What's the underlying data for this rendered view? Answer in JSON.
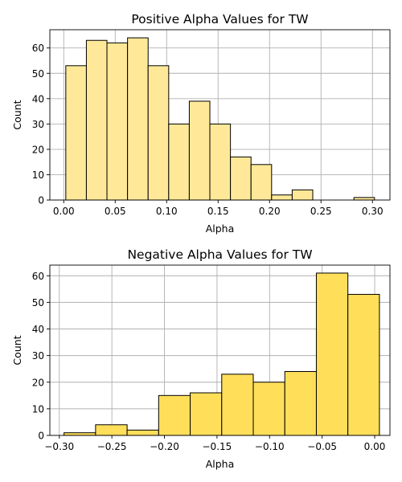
{
  "chart_data": [
    {
      "type": "bar",
      "title": "Positive Alpha Values for TW",
      "xlabel": "Alpha",
      "ylabel": "Count",
      "color": "#ffe999",
      "xlim": [
        -0.0135,
        0.317
      ],
      "ylim": [
        0,
        67.2
      ],
      "grid": true,
      "xticks": [
        0.0,
        0.05,
        0.1,
        0.15,
        0.2,
        0.25,
        0.3
      ],
      "xtick_labels": [
        "0.00",
        "0.05",
        "0.10",
        "0.15",
        "0.20",
        "0.25",
        "0.30"
      ],
      "yticks": [
        0,
        10,
        20,
        30,
        40,
        50,
        60
      ],
      "ytick_labels": [
        "0",
        "10",
        "20",
        "30",
        "40",
        "50",
        "60"
      ],
      "bins": [
        {
          "x0": 0.002,
          "x1": 0.022,
          "value": 53
        },
        {
          "x0": 0.022,
          "x1": 0.042,
          "value": 63
        },
        {
          "x0": 0.042,
          "x1": 0.062,
          "value": 62
        },
        {
          "x0": 0.062,
          "x1": 0.082,
          "value": 64
        },
        {
          "x0": 0.082,
          "x1": 0.102,
          "value": 53
        },
        {
          "x0": 0.102,
          "x1": 0.122,
          "value": 30
        },
        {
          "x0": 0.122,
          "x1": 0.142,
          "value": 39
        },
        {
          "x0": 0.142,
          "x1": 0.162,
          "value": 30
        },
        {
          "x0": 0.162,
          "x1": 0.182,
          "value": 17
        },
        {
          "x0": 0.182,
          "x1": 0.202,
          "value": 14
        },
        {
          "x0": 0.202,
          "x1": 0.222,
          "value": 2
        },
        {
          "x0": 0.222,
          "x1": 0.242,
          "value": 4
        },
        {
          "x0": 0.242,
          "x1": 0.262,
          "value": 0
        },
        {
          "x0": 0.262,
          "x1": 0.282,
          "value": 0
        },
        {
          "x0": 0.282,
          "x1": 0.302,
          "value": 1
        }
      ]
    },
    {
      "type": "bar",
      "title": "Negative Alpha Values for TW",
      "xlabel": "Alpha",
      "ylabel": "Count",
      "color": "#ffdf5a",
      "xlim": [
        -0.309,
        0.0145
      ],
      "ylim": [
        0,
        64.0
      ],
      "grid": true,
      "xticks": [
        -0.3,
        -0.25,
        -0.2,
        -0.15,
        -0.1,
        -0.05,
        0.0
      ],
      "xtick_labels": [
        "−0.30",
        "−0.25",
        "−0.20",
        "−0.15",
        "−0.10",
        "−0.05",
        "0.00"
      ],
      "yticks": [
        0,
        10,
        20,
        30,
        40,
        50,
        60
      ],
      "ytick_labels": [
        "0",
        "10",
        "20",
        "30",
        "40",
        "50",
        "60"
      ],
      "bins": [
        {
          "x0": -0.2955,
          "x1": -0.2655,
          "value": 1
        },
        {
          "x0": -0.2655,
          "x1": -0.2355,
          "value": 4
        },
        {
          "x0": -0.2355,
          "x1": -0.2055,
          "value": 2
        },
        {
          "x0": -0.2055,
          "x1": -0.1755,
          "value": 15
        },
        {
          "x0": -0.1755,
          "x1": -0.1455,
          "value": 16
        },
        {
          "x0": -0.1455,
          "x1": -0.1155,
          "value": 23
        },
        {
          "x0": -0.1155,
          "x1": -0.0855,
          "value": 20
        },
        {
          "x0": -0.0855,
          "x1": -0.0555,
          "value": 24
        },
        {
          "x0": -0.0555,
          "x1": -0.0255,
          "value": 61
        },
        {
          "x0": -0.0255,
          "x1": 0.0045,
          "value": 53
        }
      ]
    }
  ]
}
